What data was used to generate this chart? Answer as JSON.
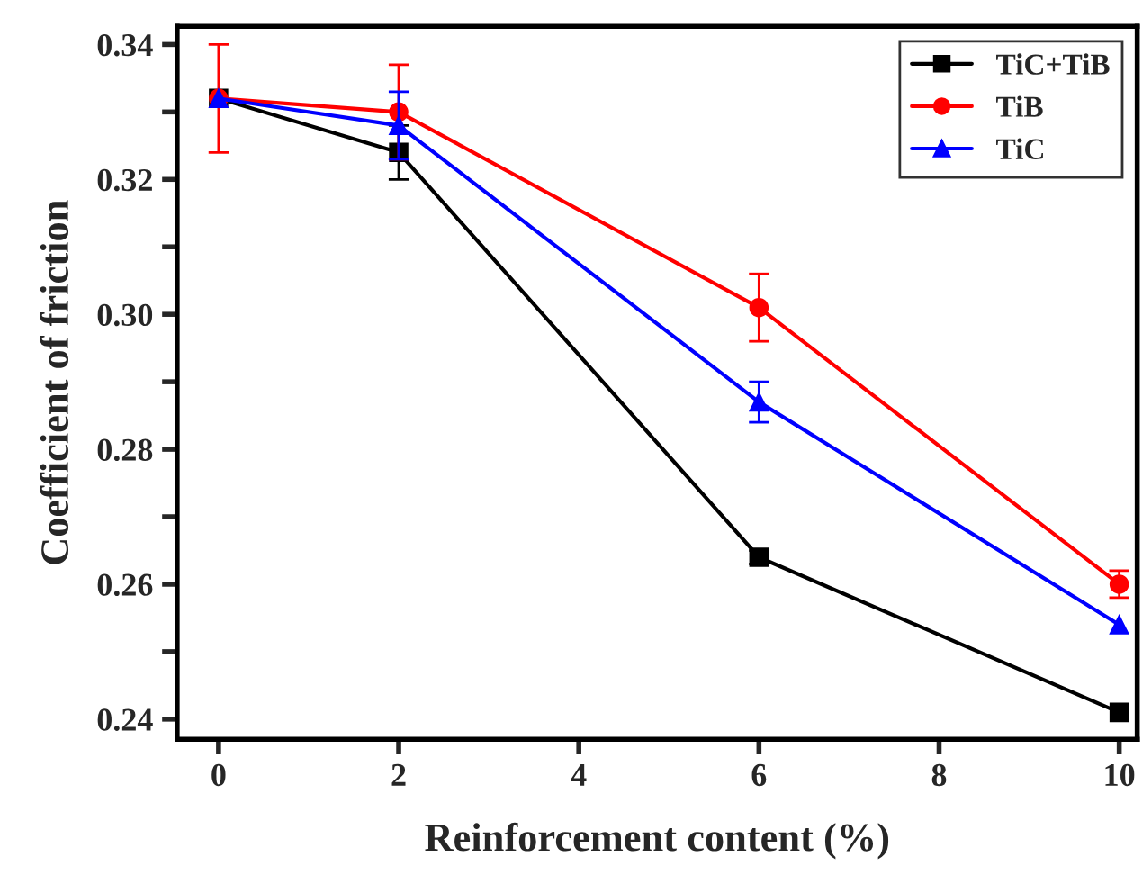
{
  "chart_data": {
    "type": "line",
    "xlabel": "Reinforcement content (%)",
    "ylabel": "Coefficient of friction",
    "x": [
      0,
      2,
      6,
      10
    ],
    "series": [
      {
        "name": "TiC+TiB",
        "color": "#000000",
        "marker": "square",
        "values": [
          0.332,
          0.324,
          0.264,
          0.241
        ],
        "errors": [
          null,
          0.004,
          0.001,
          null
        ]
      },
      {
        "name": "TiB",
        "color": "#ff0000",
        "marker": "circle",
        "values": [
          0.332,
          0.33,
          0.301,
          0.26
        ],
        "errors": [
          0.008,
          0.007,
          0.005,
          0.002
        ]
      },
      {
        "name": "TiC",
        "color": "#0000ff",
        "marker": "triangle",
        "values": [
          0.332,
          0.328,
          0.287,
          0.254
        ],
        "errors": [
          null,
          0.005,
          0.003,
          null
        ]
      }
    ],
    "xlim": [
      -0.46,
      10.2
    ],
    "xticks": [
      0,
      2,
      4,
      6,
      8,
      10
    ],
    "ylim": [
      0.237,
      0.3427
    ],
    "yticks": [
      {
        "value": 0.24,
        "label": "0.24"
      },
      {
        "value": 0.25,
        "label": null
      },
      {
        "value": 0.26,
        "label": "0.26"
      },
      {
        "value": 0.27,
        "label": null
      },
      {
        "value": 0.28,
        "label": "0.28"
      },
      {
        "value": 0.29,
        "label": null
      },
      {
        "value": 0.3,
        "label": "0.30"
      },
      {
        "value": 0.31,
        "label": null
      },
      {
        "value": 0.32,
        "label": "0.32"
      },
      {
        "value": 0.33,
        "label": null
      },
      {
        "value": 0.34,
        "label": "0.34"
      }
    ],
    "grid": false,
    "legend": "top right",
    "line_style": "solid"
  }
}
